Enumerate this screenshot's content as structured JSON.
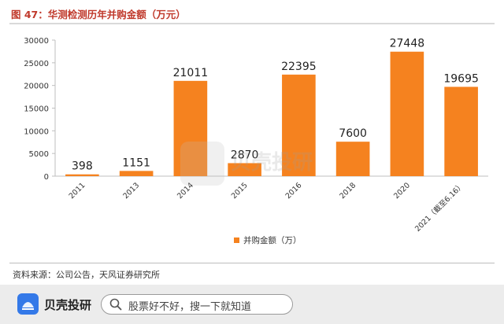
{
  "header": {
    "title": "图 47：华测检测历年并购金额（万元）"
  },
  "chart_data": {
    "type": "bar",
    "title": "",
    "xlabel": "",
    "ylabel": "",
    "categories": [
      "2011",
      "2013",
      "2014",
      "2015",
      "2016",
      "2018",
      "2020",
      "2021（截至6.16）"
    ],
    "series": [
      {
        "name": "并购金额（万）",
        "values": [
          398,
          1151,
          21011,
          2870,
          22395,
          7600,
          27448,
          19695
        ]
      }
    ],
    "data_labels": [
      "398",
      "1151",
      "21011",
      "2870",
      "22395",
      "7600",
      "27448",
      "19695"
    ],
    "ylim": [
      0,
      30000
    ],
    "yticks": [
      0,
      5000,
      10000,
      15000,
      20000,
      25000,
      30000
    ],
    "ytick_labels": [
      "0",
      "5000",
      "10000",
      "15000",
      "20000",
      "25000",
      "30000"
    ],
    "grid": false,
    "legend_position": "bottom",
    "bar_color": "#f5821f"
  },
  "watermark": {
    "text": "贝壳投研"
  },
  "source": {
    "text": "资料来源：公司公告，天风证券研究所"
  },
  "footer": {
    "app_name": "贝壳投研",
    "search_text": "股票好不好，搜一下就知道"
  },
  "colors": {
    "title": "#c0392b",
    "brand_blue": "#3479e8"
  }
}
